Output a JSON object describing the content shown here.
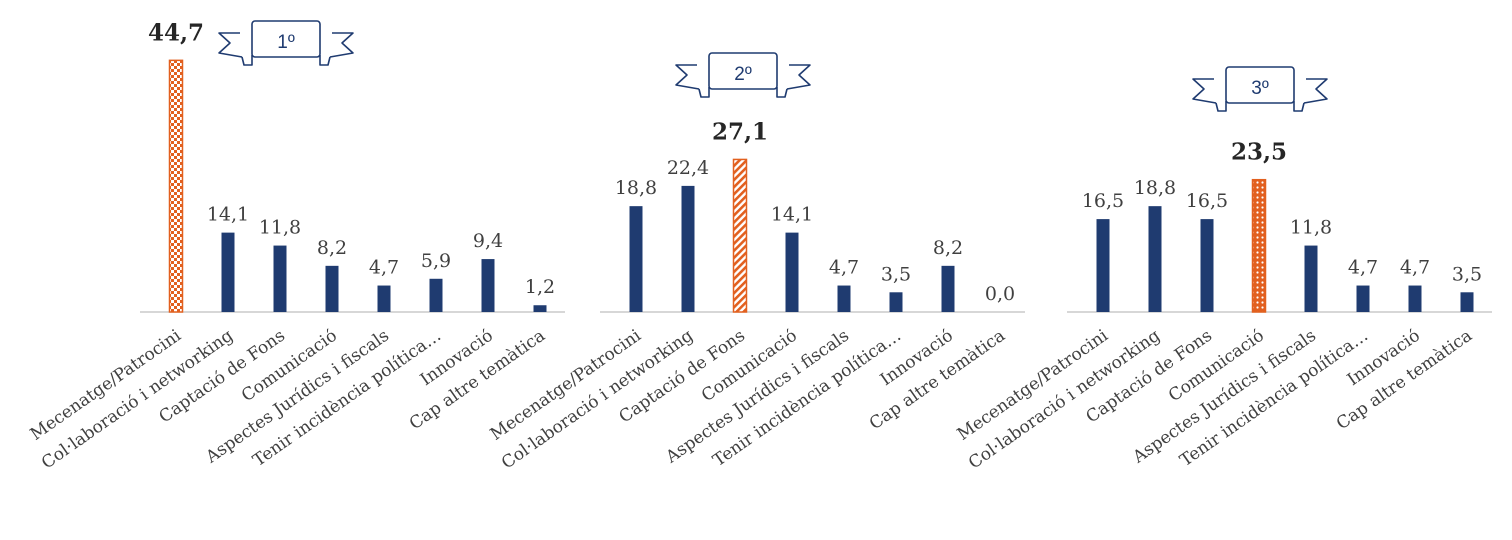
{
  "chart_data": {
    "type": "bar",
    "ylim": [
      0,
      50
    ],
    "colors": {
      "bar": "#1f3b70",
      "highlight": "#e2601f",
      "ribbon": "#1f3b70",
      "axis": "#bfbfbf"
    },
    "panels": [
      {
        "rank_label": "1º",
        "highlight_index": 0,
        "highlight_pattern": "checker",
        "categories": [
          "Mecenatge/Patrocini",
          "Col·laboració i networking",
          "Captació de Fons",
          "Comunicació",
          "Aspectes Jurídics i fiscals",
          "Tenir incidència política…",
          "Innovació",
          "Cap altre temàtica"
        ],
        "values": [
          44.7,
          14.1,
          11.8,
          8.2,
          4.7,
          5.9,
          9.4,
          1.2
        ],
        "value_labels": [
          "44,7",
          "14,1",
          "11,8",
          "8,2",
          "4,7",
          "5,9",
          "9,4",
          "1,2"
        ]
      },
      {
        "rank_label": "2º",
        "highlight_index": 2,
        "highlight_pattern": "diagonal",
        "categories": [
          "Mecenatge/Patrocini",
          "Col·laboració i networking",
          "Captació de Fons",
          "Comunicació",
          "Aspectes Jurídics i fiscals",
          "Tenir incidència política…",
          "Innovació",
          "Cap altre temàtica"
        ],
        "values": [
          18.8,
          22.4,
          27.1,
          14.1,
          4.7,
          3.5,
          8.2,
          0.0
        ],
        "value_labels": [
          "18,8",
          "22,4",
          "27,1",
          "14,1",
          "4,7",
          "3,5",
          "8,2",
          "0,0"
        ]
      },
      {
        "rank_label": "3º",
        "highlight_index": 3,
        "highlight_pattern": "dots",
        "categories": [
          "Mecenatge/Patrocini",
          "Col·laboració i networking",
          "Captació de Fons",
          "Comunicació",
          "Aspectes Jurídics i fiscals",
          "Tenir incidència política…",
          "Innovació",
          "Cap altre temàtica"
        ],
        "values": [
          16.5,
          18.8,
          16.5,
          23.5,
          11.8,
          4.7,
          4.7,
          3.5
        ],
        "value_labels": [
          "16,5",
          "18,8",
          "16,5",
          "23,5",
          "11,8",
          "4,7",
          "4,7",
          "3,5"
        ]
      }
    ]
  }
}
